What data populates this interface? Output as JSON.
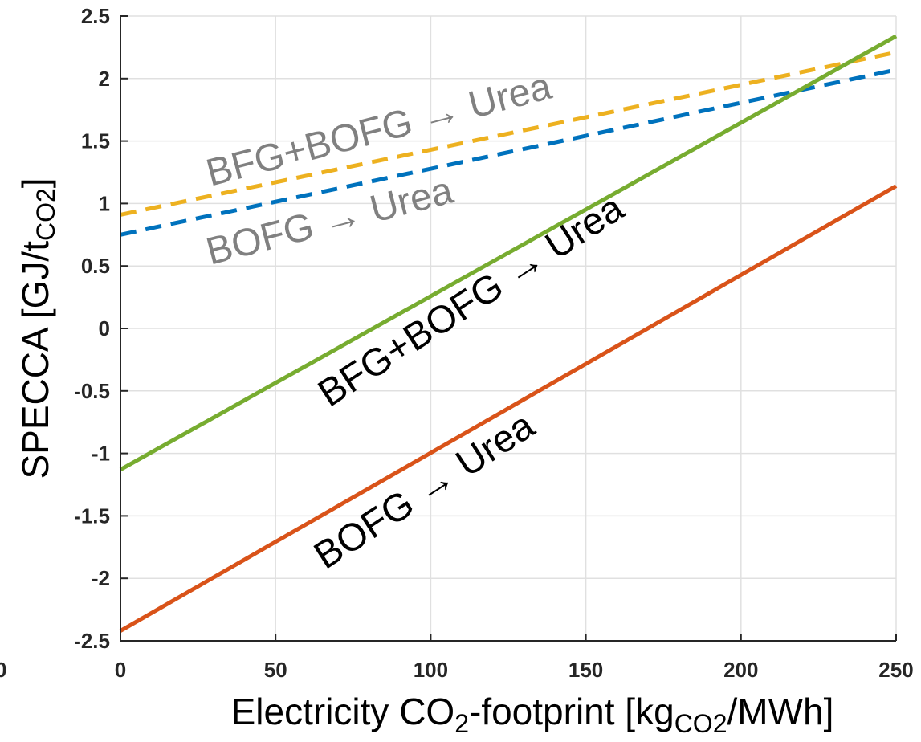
{
  "chart_data": {
    "type": "line",
    "xlabel": {
      "main": "Electricity CO",
      "sub1": "2",
      "mid": "-footprint [kg",
      "sub2": "CO2",
      "end": "/MWh]"
    },
    "ylabel": {
      "main": "SPECCA [GJ/t",
      "sub": "CO2",
      "end": "]"
    },
    "xlim": [
      0,
      250
    ],
    "ylim": [
      -2.5,
      2.5
    ],
    "x_ticks": [
      "0",
      "50",
      "100",
      "150",
      "200",
      "250"
    ],
    "y_ticks": [
      "-2.5",
      "-2",
      "-1.5",
      "-1",
      "-0.5",
      "0",
      "0.5",
      "1",
      "1.5",
      "2",
      "2.5"
    ],
    "left_partial_tick": "0",
    "grid": true,
    "series": [
      {
        "label_key": "s_bfg_bofg_dash",
        "color": "#EDB120",
        "dash": true,
        "x": [
          0,
          250
        ],
        "y": [
          0.91,
          2.21
        ]
      },
      {
        "label_key": "s_bofg_dash",
        "color": "#0072BD",
        "dash": true,
        "x": [
          0,
          250
        ],
        "y": [
          0.75,
          2.07
        ]
      },
      {
        "label_key": "s_bfg_bofg_solid",
        "color": "#77AC30",
        "dash": false,
        "x": [
          0,
          250
        ],
        "y": [
          -1.13,
          2.34
        ]
      },
      {
        "label_key": "s_bofg_solid",
        "color": "#D95319",
        "dash": false,
        "x": [
          0,
          250
        ],
        "y": [
          -2.42,
          1.14
        ]
      }
    ],
    "annotations": [
      {
        "text": "BFG+BOFG → Urea",
        "color": "#808080"
      },
      {
        "text": "BOFG → Urea",
        "color": "#808080"
      },
      {
        "text": "BFG+BOFG → Urea",
        "color": "#000000"
      },
      {
        "text": "BOFG → Urea",
        "color": "#000000"
      }
    ]
  }
}
